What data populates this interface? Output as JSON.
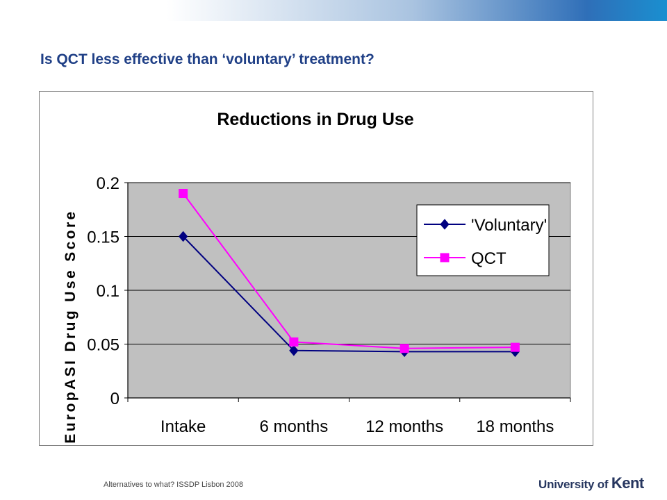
{
  "slide": {
    "title": "Is QCT less effective than ‘voluntary’ treatment?",
    "footer": "Alternatives to what? ISSDP Lisbon 2008",
    "logo": {
      "prefix": "University of",
      "name": "Kent"
    }
  },
  "colors": {
    "title": "#1f3f86",
    "plot_bg": "#c0c0c0",
    "voluntary": "#000080",
    "qct": "#ff00ff"
  },
  "chart_data": {
    "type": "line",
    "title": "Reductions in Drug Use",
    "xlabel": "",
    "ylabel": "EuropASI Drug Use Score",
    "categories": [
      "Intake",
      "6 months",
      "12 months",
      "18 months"
    ],
    "ylim": [
      0,
      0.2
    ],
    "yticks": [
      "0",
      "0.05",
      "0.1",
      "0.15",
      "0.2"
    ],
    "grid": true,
    "legend_position": "top-right",
    "series": [
      {
        "name": "'Voluntary'",
        "values": [
          0.15,
          0.044,
          0.043,
          0.043
        ],
        "marker": "diamond",
        "color": "#000080"
      },
      {
        "name": "QCT",
        "values": [
          0.19,
          0.052,
          0.046,
          0.047
        ],
        "marker": "square",
        "color": "#ff00ff"
      }
    ]
  }
}
